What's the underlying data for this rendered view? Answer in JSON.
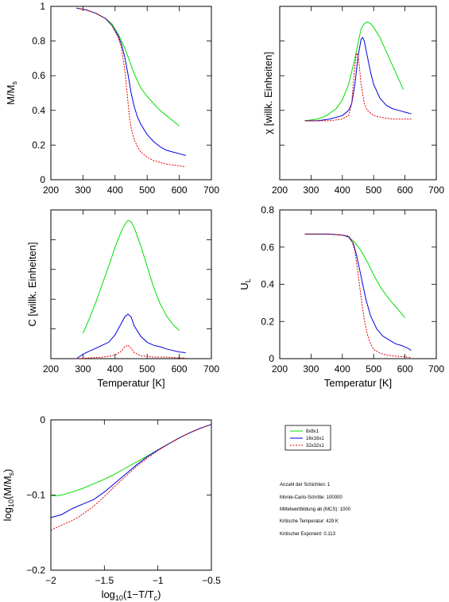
{
  "colors": {
    "8x8x1": "#00e000",
    "16x16x1": "#0000e0",
    "32x32x1": "#e00000"
  },
  "legend": {
    "placement": "right-of-bottom-panel",
    "entries": [
      "8x8x1",
      "16x16x1",
      "32x32x1"
    ]
  },
  "info": [
    "Anzahl der Schichten: 1",
    "Monte-Carlo-Schritte: 100000",
    "Mittelwertbildung ab (MCS): 1000",
    "Kritische Temperatur: 429 K",
    "Kritischer Exponent: 0.113"
  ],
  "chart_data": [
    {
      "id": "mag",
      "type": "line",
      "xlabel": "",
      "ylabel": "M/M",
      "ylabel_sub": "s",
      "xlim": [
        200,
        700
      ],
      "ylim": [
        0,
        1
      ],
      "xticks": [
        200,
        300,
        400,
        500,
        600,
        700
      ],
      "yticks": [
        0,
        0.2,
        0.4,
        0.6,
        0.8,
        1
      ],
      "ytick_labels": [
        "0",
        "0.2",
        "0.4",
        "0.6",
        "0.8",
        "1"
      ],
      "series": [
        {
          "name": "8x8x1",
          "x": [
            280,
            310,
            340,
            370,
            390,
            410,
            420,
            430,
            440,
            460,
            480,
            500,
            520,
            540,
            560,
            580,
            600
          ],
          "y": [
            0.99,
            0.98,
            0.96,
            0.93,
            0.9,
            0.84,
            0.8,
            0.76,
            0.71,
            0.61,
            0.53,
            0.48,
            0.44,
            0.4,
            0.37,
            0.34,
            0.31
          ]
        },
        {
          "name": "16x16x1",
          "x": [
            280,
            310,
            340,
            370,
            390,
            410,
            420,
            430,
            440,
            450,
            460,
            470,
            480,
            500,
            520,
            540,
            560,
            580,
            600,
            620
          ],
          "y": [
            0.99,
            0.98,
            0.96,
            0.93,
            0.89,
            0.83,
            0.78,
            0.71,
            0.61,
            0.5,
            0.42,
            0.36,
            0.32,
            0.26,
            0.22,
            0.19,
            0.17,
            0.16,
            0.15,
            0.14
          ]
        },
        {
          "name": "32x32x1",
          "x": [
            280,
            310,
            340,
            370,
            390,
            410,
            420,
            430,
            435,
            440,
            445,
            450,
            460,
            470,
            480,
            500,
            520,
            540,
            560,
            580,
            600,
            620
          ],
          "y": [
            0.99,
            0.98,
            0.96,
            0.93,
            0.89,
            0.82,
            0.76,
            0.64,
            0.55,
            0.45,
            0.36,
            0.3,
            0.23,
            0.19,
            0.16,
            0.13,
            0.11,
            0.1,
            0.09,
            0.085,
            0.08,
            0.075
          ]
        }
      ]
    },
    {
      "id": "chi",
      "type": "line",
      "xlabel": "",
      "ylabel": "χ [willk. Einheiten]",
      "xlim": [
        200,
        700
      ],
      "ylim": [
        0,
        1
      ],
      "xticks": [
        200,
        300,
        400,
        500,
        600,
        700
      ],
      "yticks": [
        0,
        0.2,
        0.4,
        0.6,
        0.8,
        1
      ],
      "ytick_labels": [
        "",
        "",
        "",
        "",
        "",
        ""
      ],
      "series": [
        {
          "name": "8x8x1",
          "x": [
            280,
            320,
            350,
            380,
            400,
            420,
            440,
            460,
            470,
            480,
            490,
            500,
            520,
            540,
            560,
            580,
            595
          ],
          "y": [
            0.34,
            0.35,
            0.37,
            0.41,
            0.46,
            0.55,
            0.7,
            0.87,
            0.9,
            0.91,
            0.9,
            0.88,
            0.82,
            0.74,
            0.66,
            0.58,
            0.52
          ]
        },
        {
          "name": "16x16x1",
          "x": [
            280,
            320,
            360,
            400,
            420,
            430,
            440,
            450,
            460,
            465,
            470,
            480,
            490,
            500,
            520,
            540,
            560,
            580,
            600,
            620
          ],
          "y": [
            0.34,
            0.34,
            0.35,
            0.37,
            0.4,
            0.44,
            0.55,
            0.71,
            0.81,
            0.82,
            0.8,
            0.71,
            0.62,
            0.55,
            0.47,
            0.43,
            0.41,
            0.4,
            0.39,
            0.38
          ]
        },
        {
          "name": "32x32x1",
          "x": [
            280,
            320,
            360,
            400,
            420,
            430,
            435,
            440,
            445,
            450,
            455,
            460,
            470,
            480,
            500,
            520,
            540,
            560,
            580,
            600,
            620
          ],
          "y": [
            0.34,
            0.34,
            0.34,
            0.35,
            0.37,
            0.44,
            0.56,
            0.66,
            0.73,
            0.72,
            0.64,
            0.55,
            0.44,
            0.4,
            0.37,
            0.36,
            0.355,
            0.35,
            0.35,
            0.35,
            0.35
          ]
        }
      ]
    },
    {
      "id": "heat",
      "type": "line",
      "xlabel": "Temperatur [K]",
      "ylabel": "C [willk. Einheiten]",
      "xlim": [
        200,
        700
      ],
      "ylim": [
        0,
        1
      ],
      "xticks": [
        200,
        300,
        400,
        500,
        600,
        700
      ],
      "yticks": [
        0,
        0.2,
        0.4,
        0.6,
        0.8,
        1
      ],
      "ytick_labels": [
        "",
        "",
        "",
        "",
        "",
        ""
      ],
      "series": [
        {
          "name": "8x8x1",
          "x": [
            300,
            320,
            340,
            360,
            380,
            400,
            420,
            430,
            440,
            450,
            460,
            480,
            500,
            520,
            540,
            560,
            580,
            600
          ],
          "y": [
            0.17,
            0.27,
            0.38,
            0.5,
            0.62,
            0.75,
            0.86,
            0.9,
            0.93,
            0.92,
            0.88,
            0.76,
            0.62,
            0.48,
            0.37,
            0.29,
            0.23,
            0.19
          ]
        },
        {
          "name": "16x16x1",
          "x": [
            280,
            300,
            320,
            340,
            360,
            380,
            400,
            420,
            430,
            440,
            450,
            460,
            480,
            500,
            520,
            540,
            560,
            580,
            600,
            620
          ],
          "y": [
            0.0,
            0.03,
            0.05,
            0.07,
            0.09,
            0.11,
            0.16,
            0.24,
            0.28,
            0.3,
            0.28,
            0.22,
            0.15,
            0.11,
            0.09,
            0.08,
            0.065,
            0.055,
            0.045,
            0.04
          ]
        },
        {
          "name": "32x32x1",
          "x": [
            280,
            320,
            360,
            380,
            400,
            420,
            430,
            440,
            450,
            460,
            480,
            500,
            520,
            560,
            600,
            620
          ],
          "y": [
            0.0,
            0.005,
            0.01,
            0.015,
            0.025,
            0.05,
            0.08,
            0.09,
            0.07,
            0.04,
            0.02,
            0.015,
            0.01,
            0.01,
            0.005,
            0.005
          ]
        }
      ]
    },
    {
      "id": "binder",
      "type": "line",
      "xlabel": "Temperatur [K]",
      "ylabel": "U",
      "ylabel_sub": "L",
      "xlim": [
        200,
        700
      ],
      "ylim": [
        0,
        0.8
      ],
      "xticks": [
        200,
        300,
        400,
        500,
        600,
        700
      ],
      "yticks": [
        0,
        0.2,
        0.4,
        0.6,
        0.8
      ],
      "ytick_labels": [
        "0",
        "0.2",
        "0.4",
        "0.6",
        "0.8"
      ],
      "series": [
        {
          "name": "8x8x1",
          "x": [
            280,
            320,
            360,
            400,
            420,
            440,
            460,
            480,
            500,
            520,
            540,
            560,
            580,
            600
          ],
          "y": [
            0.67,
            0.67,
            0.67,
            0.665,
            0.655,
            0.625,
            0.58,
            0.52,
            0.45,
            0.39,
            0.34,
            0.3,
            0.26,
            0.22
          ]
        },
        {
          "name": "16x16x1",
          "x": [
            280,
            320,
            360,
            400,
            420,
            435,
            445,
            455,
            465,
            475,
            490,
            510,
            530,
            550,
            570,
            590,
            610,
            620
          ],
          "y": [
            0.67,
            0.67,
            0.67,
            0.665,
            0.655,
            0.62,
            0.56,
            0.48,
            0.4,
            0.32,
            0.23,
            0.16,
            0.12,
            0.1,
            0.08,
            0.07,
            0.055,
            0.045
          ]
        },
        {
          "name": "32x32x1",
          "x": [
            280,
            320,
            360,
            400,
            420,
            430,
            440,
            450,
            460,
            470,
            480,
            490,
            500,
            520,
            540,
            560,
            580,
            600,
            620
          ],
          "y": [
            0.67,
            0.67,
            0.67,
            0.665,
            0.66,
            0.635,
            0.58,
            0.46,
            0.33,
            0.21,
            0.13,
            0.08,
            0.05,
            0.03,
            0.02,
            0.015,
            0.012,
            0.01,
            0.005
          ]
        }
      ]
    },
    {
      "id": "loglog",
      "type": "line",
      "xlabel": "log",
      "xlabel_sub": "10",
      "xlabel_tail": "(1−T/T",
      "xlabel_tail_sub": "c",
      "xlabel_end": ")",
      "ylabel": "log",
      "ylabel_sub": "10",
      "ylabel_tail": "(M/M",
      "ylabel_tail_sub": "s",
      "ylabel_end": ")",
      "xlim": [
        -2,
        -0.5
      ],
      "ylim": [
        -0.2,
        0
      ],
      "xticks": [
        -2,
        -1.5,
        -1,
        -0.5
      ],
      "xtick_labels": [
        "−2",
        "−1.5",
        "−1",
        "−0.5"
      ],
      "yticks": [
        -0.2,
        -0.1,
        0
      ],
      "ytick_labels": [
        "−0.2",
        "−0.1",
        "0"
      ],
      "series": [
        {
          "name": "8x8x1",
          "x": [
            -2.0,
            -1.95,
            -1.9,
            -1.8,
            -1.7,
            -1.6,
            -1.5,
            -1.4,
            -1.3,
            -1.2,
            -1.1,
            -1.0,
            -0.9,
            -0.8,
            -0.7,
            -0.6,
            -0.5
          ],
          "y": [
            -0.101,
            -0.101,
            -0.1,
            -0.096,
            -0.091,
            -0.085,
            -0.079,
            -0.072,
            -0.064,
            -0.056,
            -0.048,
            -0.04,
            -0.032,
            -0.024,
            -0.017,
            -0.011,
            -0.006
          ]
        },
        {
          "name": "16x16x1",
          "x": [
            -2.0,
            -1.9,
            -1.8,
            -1.7,
            -1.6,
            -1.5,
            -1.4,
            -1.3,
            -1.2,
            -1.1,
            -1.0,
            -0.9,
            -0.8,
            -0.7,
            -0.6,
            -0.5
          ],
          "y": [
            -0.13,
            -0.126,
            -0.118,
            -0.112,
            -0.106,
            -0.096,
            -0.084,
            -0.072,
            -0.06,
            -0.049,
            -0.04,
            -0.032,
            -0.024,
            -0.017,
            -0.011,
            -0.006
          ]
        },
        {
          "name": "32x32x1",
          "x": [
            -2.0,
            -1.9,
            -1.8,
            -1.75,
            -1.6,
            -1.5,
            -1.4,
            -1.3,
            -1.2,
            -1.1,
            -1.0,
            -0.9,
            -0.8,
            -0.7,
            -0.6,
            -0.5
          ],
          "y": [
            -0.147,
            -0.14,
            -0.134,
            -0.13,
            -0.115,
            -0.102,
            -0.088,
            -0.075,
            -0.062,
            -0.051,
            -0.041,
            -0.032,
            -0.024,
            -0.017,
            -0.011,
            -0.006
          ]
        }
      ]
    }
  ]
}
